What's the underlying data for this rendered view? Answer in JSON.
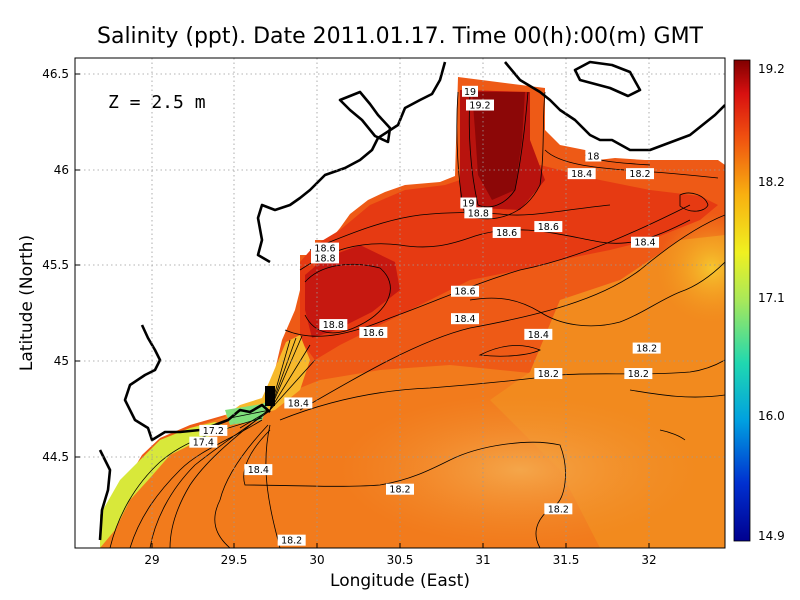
{
  "title": "Salinity (ppt). Date 2011.01.17. Time 00(h):00(m) GMT",
  "depth_label": "Z = 2.5 m",
  "chart_data": {
    "type": "heatmap",
    "variable": "Salinity",
    "units": "ppt",
    "date": "2011.01.17",
    "time": "00(h):00(m) GMT",
    "depth": "2.5 m",
    "xlabel": "Longitude (East)",
    "ylabel": "Latitude (North)",
    "xlim": [
      28.55,
      32.45
    ],
    "ylim": [
      44.05,
      46.55
    ],
    "xticks": [
      "29",
      "29.5",
      "30",
      "30.5",
      "31",
      "31.5",
      "32"
    ],
    "yticks": [
      "44.5",
      "45",
      "45.5",
      "46",
      "46.5"
    ],
    "grid": true,
    "colorbar": {
      "min": 14.9,
      "max": 19.2,
      "ticks": [
        "19.2",
        "18.2",
        "17.1",
        "16.0",
        "14.9"
      ]
    },
    "contour_labels": [
      {
        "text": "19",
        "lon": 30.92,
        "lat": 46.38
      },
      {
        "text": "19.2",
        "lon": 30.98,
        "lat": 46.31
      },
      {
        "text": "18",
        "lon": 31.66,
        "lat": 46.05
      },
      {
        "text": "18.4",
        "lon": 31.59,
        "lat": 45.96
      },
      {
        "text": "18.2",
        "lon": 31.94,
        "lat": 45.96
      },
      {
        "text": "19",
        "lon": 30.91,
        "lat": 45.81
      },
      {
        "text": "18.8",
        "lon": 30.97,
        "lat": 45.76
      },
      {
        "text": "18.6",
        "lon": 31.14,
        "lat": 45.66
      },
      {
        "text": "18.6",
        "lon": 31.39,
        "lat": 45.69
      },
      {
        "text": "18.4",
        "lon": 31.97,
        "lat": 45.61
      },
      {
        "text": "18.6",
        "lon": 30.05,
        "lat": 45.58
      },
      {
        "text": "18.8",
        "lon": 30.05,
        "lat": 45.53
      },
      {
        "text": "18.6",
        "lon": 30.89,
        "lat": 45.36
      },
      {
        "text": "18.8",
        "lon": 30.1,
        "lat": 45.19
      },
      {
        "text": "18.6",
        "lon": 30.34,
        "lat": 45.15
      },
      {
        "text": "18.4",
        "lon": 30.89,
        "lat": 45.22
      },
      {
        "text": "18.4",
        "lon": 31.33,
        "lat": 45.14
      },
      {
        "text": "18.2",
        "lon": 31.98,
        "lat": 45.07
      },
      {
        "text": "18.2",
        "lon": 31.39,
        "lat": 44.94
      },
      {
        "text": "18.2",
        "lon": 31.93,
        "lat": 44.94
      },
      {
        "text": "18.4",
        "lon": 29.89,
        "lat": 44.79
      },
      {
        "text": "17.2",
        "lon": 29.38,
        "lat": 44.65
      },
      {
        "text": "17.4",
        "lon": 29.32,
        "lat": 44.59
      },
      {
        "text": "18.4",
        "lon": 29.65,
        "lat": 44.45
      },
      {
        "text": "18.2",
        "lon": 30.5,
        "lat": 44.35
      },
      {
        "text": "18.2",
        "lon": 31.45,
        "lat": 44.25
      },
      {
        "text": "18.2",
        "lon": 29.85,
        "lat": 44.09
      }
    ]
  }
}
